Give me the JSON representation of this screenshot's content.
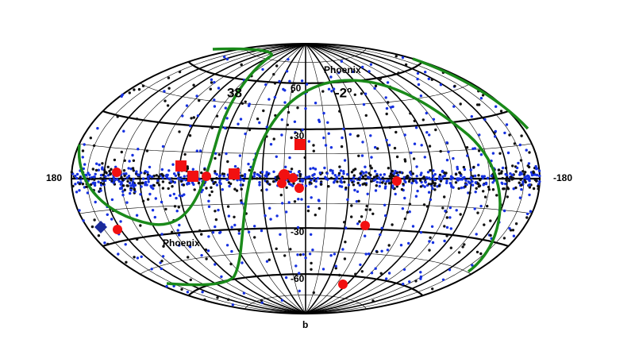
{
  "longitude_labels": [
    "180",
    "-180"
  ],
  "latitude_labels": [
    "60",
    "30",
    "-30",
    "-60"
  ],
  "axis_label": "b",
  "annotations": [
    "Phoenix",
    "Phoenix",
    "38",
    "-2º"
  ]
}
